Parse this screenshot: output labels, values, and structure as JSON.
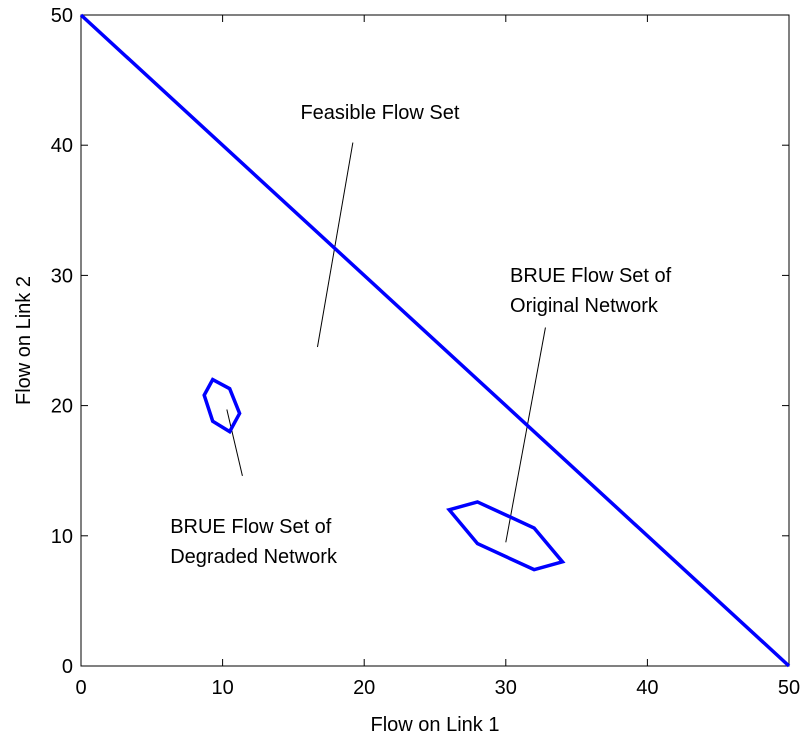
{
  "chart_data": {
    "type": "line",
    "title": "",
    "xlabel": "Flow on Link 1",
    "ylabel": "Flow on Link 2",
    "xlim": [
      0,
      50
    ],
    "ylim": [
      0,
      50
    ],
    "xticks": [
      "0",
      "10",
      "20",
      "30",
      "40",
      "50"
    ],
    "yticks": [
      "0",
      "10",
      "20",
      "30",
      "40",
      "50"
    ],
    "grid": false,
    "line_color": "#0000ff",
    "series": [
      {
        "points": [
          [
            0,
            50
          ],
          [
            50,
            0
          ]
        ]
      },
      {
        "closed": true,
        "points": [
          [
            9.3,
            22.0
          ],
          [
            10.5,
            21.3
          ],
          [
            11.2,
            19.4
          ],
          [
            10.5,
            18.0
          ],
          [
            9.3,
            18.8
          ],
          [
            8.7,
            20.8
          ]
        ]
      },
      {
        "closed": true,
        "points": [
          [
            26.0,
            12.0
          ],
          [
            28.0,
            12.6
          ],
          [
            32.0,
            10.6
          ],
          [
            34.0,
            8.0
          ],
          [
            32.0,
            7.4
          ],
          [
            28.0,
            9.4
          ]
        ]
      }
    ],
    "annotations": [
      {
        "lines": [
          "Feasible Flow Set"
        ],
        "text_anchor": [
          15.5,
          42.0
        ],
        "pointer_from": [
          19.2,
          40.2
        ],
        "pointer_to": [
          16.7,
          24.5
        ]
      },
      {
        "lines": [
          "BRUE Flow Set of",
          "Original Network"
        ],
        "text_anchor": [
          30.3,
          29.5
        ],
        "pointer_from": [
          32.8,
          26.0
        ],
        "pointer_to": [
          30.0,
          9.5
        ]
      },
      {
        "lines": [
          "BRUE Flow Set of",
          "Degraded Network"
        ],
        "text_anchor": [
          6.3,
          10.2
        ],
        "pointer_from": [
          11.4,
          14.6
        ],
        "pointer_to": [
          10.3,
          19.7
        ]
      }
    ]
  }
}
